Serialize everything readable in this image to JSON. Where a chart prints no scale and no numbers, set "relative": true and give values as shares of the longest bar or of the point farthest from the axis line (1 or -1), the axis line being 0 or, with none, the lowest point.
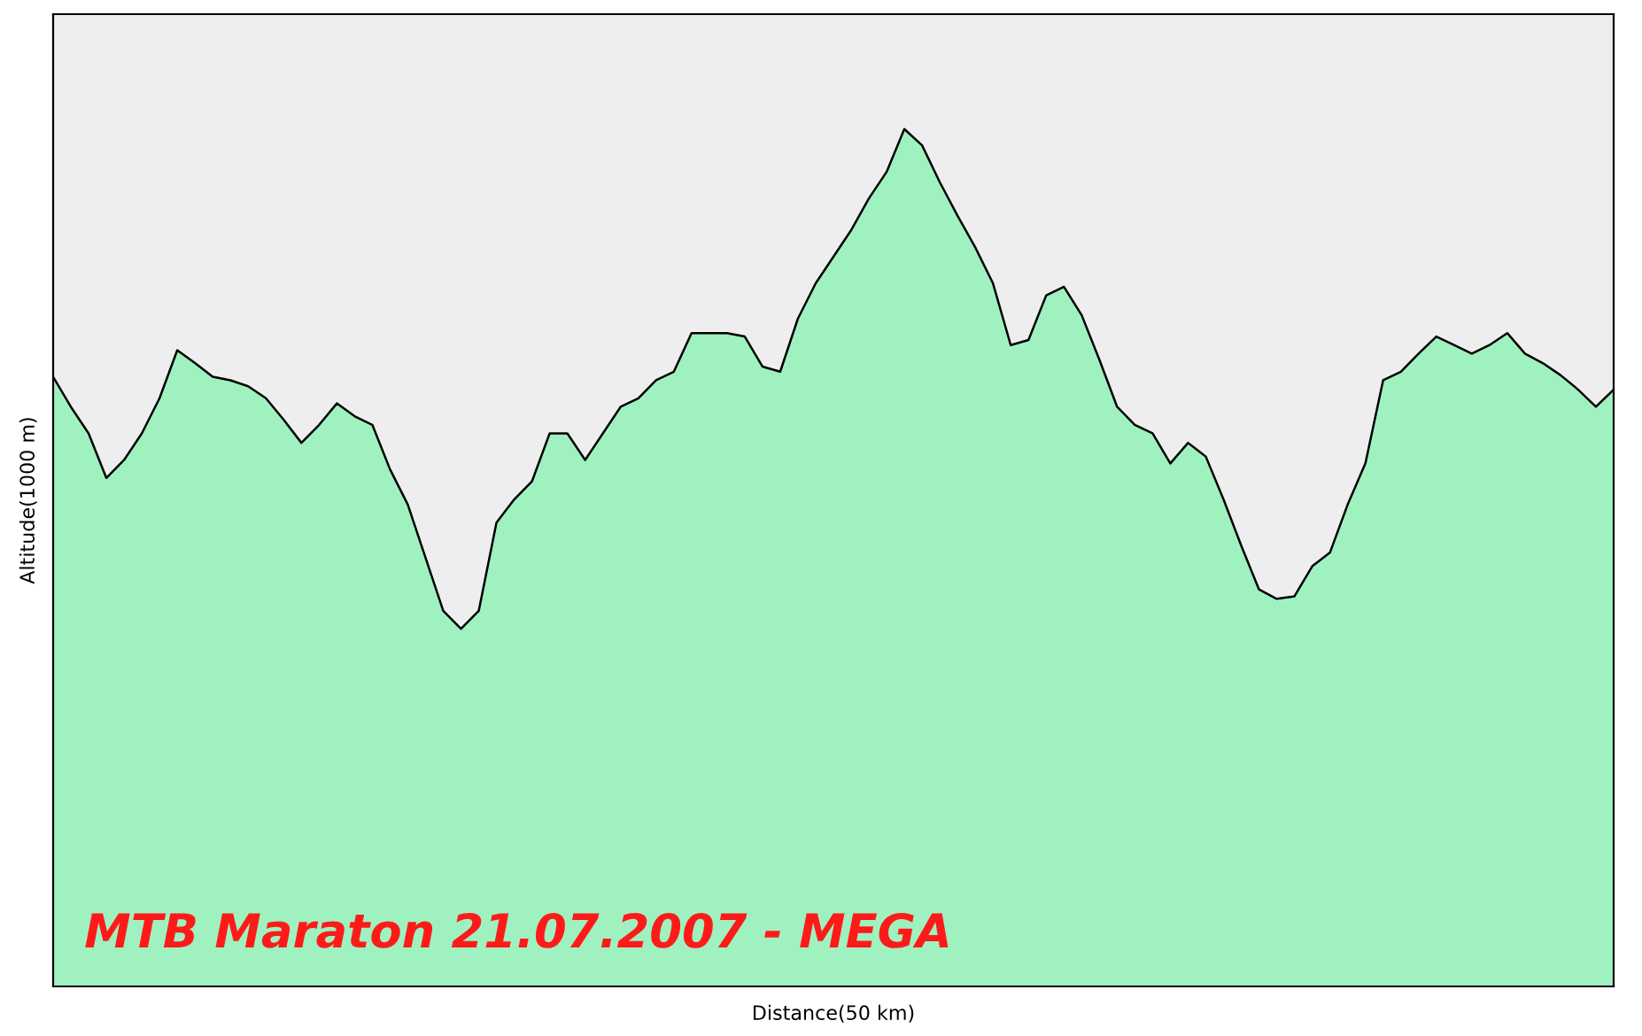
{
  "chart_data": {
    "type": "area",
    "title": "MTB Maraton 21.07.2007 - MEGA",
    "xlabel": "Distance(50 km)",
    "ylabel": "Altitude(1000 m)",
    "relative": true,
    "grid": false,
    "legend": false,
    "categories": [
      null,
      null,
      null,
      null,
      null,
      null,
      null,
      null,
      null,
      null,
      null,
      null,
      null,
      null,
      null,
      null,
      null,
      null,
      null,
      null,
      null,
      null,
      null,
      null,
      null,
      null,
      null,
      null,
      null,
      null,
      null,
      null,
      null,
      null,
      null,
      null,
      null,
      null,
      null,
      null,
      null,
      null,
      null,
      null,
      null,
      null,
      null,
      null,
      null,
      null,
      null,
      null,
      null,
      null,
      null,
      null,
      null,
      null,
      null,
      null,
      null,
      null,
      null,
      null,
      null,
      null,
      null,
      null,
      null,
      null,
      null,
      null,
      null,
      null,
      null,
      null,
      null,
      null,
      null,
      null,
      null,
      null,
      null,
      null,
      null,
      null,
      null,
      null,
      null
    ],
    "series": [
      {
        "color": "#9ff2c0",
        "values": [
          0.711,
          0.676,
          0.645,
          0.593,
          0.614,
          0.645,
          0.686,
          0.742,
          0.727,
          0.711,
          0.707,
          0.7,
          0.686,
          0.661,
          0.634,
          0.655,
          0.68,
          0.665,
          0.655,
          0.603,
          0.562,
          0.5,
          0.438,
          0.417,
          0.438,
          0.541,
          0.568,
          0.589,
          0.645,
          0.645,
          0.614,
          0.645,
          0.676,
          0.686,
          0.707,
          0.717,
          0.762,
          0.762,
          0.762,
          0.758,
          0.723,
          0.717,
          0.779,
          0.82,
          0.851,
          0.882,
          0.919,
          0.95,
          1.0,
          0.981,
          0.938,
          0.899,
          0.862,
          0.82,
          0.748,
          0.754,
          0.806,
          0.816,
          0.783,
          0.731,
          0.676,
          0.655,
          0.645,
          0.61,
          0.634,
          0.618,
          0.568,
          0.514,
          0.463,
          0.452,
          0.455,
          0.49,
          0.506,
          0.562,
          0.61,
          0.707,
          0.717,
          0.738,
          0.758,
          0.748,
          0.738,
          0.748,
          0.762,
          0.738,
          0.727,
          0.713,
          0.696,
          0.676,
          0.696
        ]
      }
    ]
  }
}
